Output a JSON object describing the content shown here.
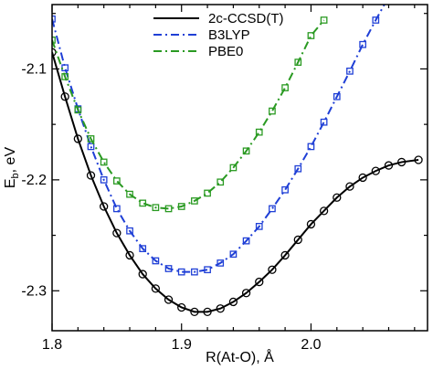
{
  "chart_data": {
    "type": "line",
    "xlabel": "R(At-O), Å",
    "ylabel_main": "E",
    "ylabel_sub": "b",
    "ylabel_tail": ", eV",
    "xlim": [
      1.8,
      2.09
    ],
    "ylim": [
      -2.336,
      -2.042
    ],
    "xticks": [
      1.8,
      1.9,
      2.0
    ],
    "xtick_labels": [
      "1.8",
      "1.9",
      "2.0"
    ],
    "yticks": [
      -2.1,
      -2.2,
      -2.3
    ],
    "ytick_labels": [
      "-2.1",
      "-2.2",
      "-2.3"
    ],
    "legend_position": "top-center",
    "series": [
      {
        "name": "2c-CCSD(T)",
        "color": "#000000",
        "line_style": "solid",
        "marker": "circle",
        "points": [
          [
            1.8,
            -2.085
          ],
          [
            1.81,
            -2.125
          ],
          [
            1.82,
            -2.163
          ],
          [
            1.83,
            -2.196
          ],
          [
            1.84,
            -2.224
          ],
          [
            1.85,
            -2.248
          ],
          [
            1.86,
            -2.268
          ],
          [
            1.87,
            -2.285
          ],
          [
            1.88,
            -2.298
          ],
          [
            1.89,
            -2.308
          ],
          [
            1.9,
            -2.315
          ],
          [
            1.91,
            -2.319
          ],
          [
            1.92,
            -2.319
          ],
          [
            1.93,
            -2.316
          ],
          [
            1.94,
            -2.31
          ],
          [
            1.95,
            -2.302
          ],
          [
            1.96,
            -2.292
          ],
          [
            1.97,
            -2.281
          ],
          [
            1.98,
            -2.268
          ],
          [
            1.99,
            -2.254
          ],
          [
            2.0,
            -2.24
          ],
          [
            2.01,
            -2.228
          ],
          [
            2.02,
            -2.216
          ],
          [
            2.03,
            -2.206
          ],
          [
            2.04,
            -2.198
          ],
          [
            2.05,
            -2.192
          ],
          [
            2.06,
            -2.187
          ],
          [
            2.07,
            -2.184
          ],
          [
            2.083,
            -2.182
          ]
        ]
      },
      {
        "name": "B3LYP",
        "color": "#1f3fd6",
        "line_style": "dash-dot",
        "marker": "square",
        "points": [
          [
            1.8,
            -2.055
          ],
          [
            1.81,
            -2.099
          ],
          [
            1.82,
            -2.136
          ],
          [
            1.83,
            -2.17
          ],
          [
            1.84,
            -2.2
          ],
          [
            1.85,
            -2.226
          ],
          [
            1.86,
            -2.246
          ],
          [
            1.87,
            -2.262
          ],
          [
            1.88,
            -2.273
          ],
          [
            1.89,
            -2.28
          ],
          [
            1.9,
            -2.283
          ],
          [
            1.91,
            -2.283
          ],
          [
            1.92,
            -2.281
          ],
          [
            1.93,
            -2.275
          ],
          [
            1.94,
            -2.267
          ],
          [
            1.95,
            -2.255
          ],
          [
            1.96,
            -2.242
          ],
          [
            1.97,
            -2.226
          ],
          [
            1.98,
            -2.209
          ],
          [
            1.99,
            -2.19
          ],
          [
            2.0,
            -2.17
          ],
          [
            2.01,
            -2.148
          ],
          [
            2.02,
            -2.125
          ],
          [
            2.03,
            -2.102
          ],
          [
            2.04,
            -2.078
          ],
          [
            2.05,
            -2.056
          ],
          [
            2.06,
            -2.035
          ]
        ]
      },
      {
        "name": "PBE0",
        "color": "#2a9a22",
        "line_style": "dash-dot",
        "marker": "square",
        "points": [
          [
            1.8,
            -2.074
          ],
          [
            1.81,
            -2.107
          ],
          [
            1.82,
            -2.137
          ],
          [
            1.83,
            -2.163
          ],
          [
            1.84,
            -2.184
          ],
          [
            1.85,
            -2.201
          ],
          [
            1.86,
            -2.213
          ],
          [
            1.87,
            -2.221
          ],
          [
            1.88,
            -2.225
          ],
          [
            1.89,
            -2.226
          ],
          [
            1.9,
            -2.224
          ],
          [
            1.91,
            -2.219
          ],
          [
            1.92,
            -2.212
          ],
          [
            1.93,
            -2.202
          ],
          [
            1.94,
            -2.189
          ],
          [
            1.95,
            -2.174
          ],
          [
            1.96,
            -2.157
          ],
          [
            1.97,
            -2.138
          ],
          [
            1.98,
            -2.117
          ],
          [
            1.99,
            -2.094
          ],
          [
            2.0,
            -2.07
          ],
          [
            2.01,
            -2.056
          ]
        ]
      }
    ]
  }
}
